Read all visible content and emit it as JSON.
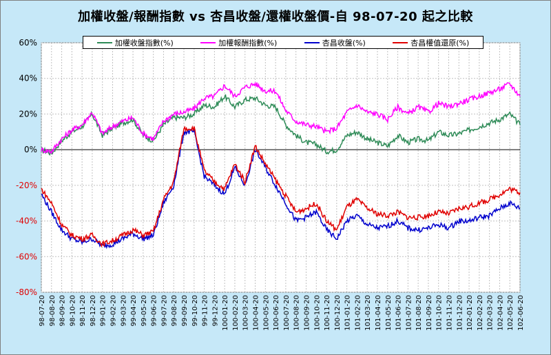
{
  "chart_data": {
    "type": "line",
    "title": "加權收盤/報酬指數 vs 杏昌收盤/還權收盤價-自 98-07-20 起之比較",
    "ylim": [
      -80,
      60
    ],
    "yticks": [
      "60%",
      "40%",
      "20%",
      "0%",
      "-20%",
      "-40%",
      "-60%",
      "-80%"
    ],
    "yticks_values": [
      60,
      40,
      20,
      0,
      -20,
      -40,
      -60,
      -80
    ],
    "xticks": [
      "98-07-20",
      "98-08-20",
      "98-09-20",
      "98-10-20",
      "98-11-20",
      "98-12-20",
      "99-01-20",
      "99-02-20",
      "99-03-20",
      "99-04-20",
      "99-05-20",
      "99-06-20",
      "99-07-20",
      "99-08-20",
      "99-09-20",
      "99-10-20",
      "99-11-20",
      "99-12-20",
      "100-01-20",
      "100-02-20",
      "100-03-20",
      "100-04-20",
      "100-05-20",
      "100-06-20",
      "100-07-20",
      "100-08-20",
      "100-09-20",
      "100-10-20",
      "100-11-20",
      "100-12-20",
      "101-01-20",
      "101-02-20",
      "101-03-20",
      "101-04-20",
      "101-05-20",
      "101-06-20",
      "101-07-20",
      "101-08-20",
      "101-09-20",
      "101-10-20",
      "101-11-20",
      "101-12-20",
      "102-01-20",
      "102-02-20",
      "102-03-20",
      "102-04-20",
      "102-05-20",
      "102-06-20"
    ],
    "grid": true,
    "legend_position": "top",
    "series": [
      {
        "name": "加權收盤指數(%)",
        "color": "#2e8b57",
        "values": [
          0,
          -2,
          5,
          10,
          13,
          20,
          8,
          12,
          15,
          17,
          8,
          5,
          14,
          18,
          18,
          20,
          25,
          24,
          30,
          24,
          28,
          29,
          25,
          24,
          14,
          8,
          4,
          3,
          -1,
          0,
          8,
          10,
          6,
          4,
          2,
          8,
          4,
          6,
          5,
          10,
          8,
          9,
          11,
          13,
          15,
          17,
          20,
          14
        ]
      },
      {
        "name": "加權報酬指數(%)",
        "color": "#ff00ff",
        "values": [
          0,
          -1,
          6,
          11,
          14,
          21,
          9,
          13,
          16,
          18,
          9,
          6,
          16,
          20,
          21,
          23,
          29,
          30,
          36,
          30,
          35,
          37,
          33,
          33,
          22,
          16,
          14,
          13,
          10,
          12,
          21,
          25,
          21,
          20,
          17,
          24,
          20,
          24,
          21,
          26,
          24,
          26,
          28,
          30,
          32,
          34,
          37,
          30
        ]
      },
      {
        "name": "杏昌收盤(%)",
        "color": "#0000cd",
        "values": [
          -25,
          -35,
          -45,
          -50,
          -52,
          -50,
          -54,
          -53,
          -50,
          -47,
          -50,
          -48,
          -30,
          -20,
          10,
          10,
          -15,
          -20,
          -25,
          -10,
          -20,
          0,
          -10,
          -20,
          -30,
          -40,
          -38,
          -35,
          -45,
          -50,
          -40,
          -37,
          -42,
          -44,
          -43,
          -40,
          -44,
          -45,
          -44,
          -42,
          -44,
          -40,
          -40,
          -38,
          -37,
          -33,
          -30,
          -33
        ]
      },
      {
        "name": "杏昌權值還原(%)",
        "color": "#e00000",
        "values": [
          -22,
          -30,
          -42,
          -48,
          -50,
          -48,
          -53,
          -51,
          -48,
          -45,
          -48,
          -46,
          -28,
          -18,
          12,
          12,
          -12,
          -18,
          -22,
          -8,
          -18,
          2,
          -8,
          -17,
          -26,
          -35,
          -33,
          -30,
          -40,
          -45,
          -32,
          -28,
          -33,
          -36,
          -37,
          -35,
          -38,
          -38,
          -37,
          -35,
          -36,
          -33,
          -32,
          -30,
          -28,
          -25,
          -22,
          -24
        ]
      }
    ]
  }
}
